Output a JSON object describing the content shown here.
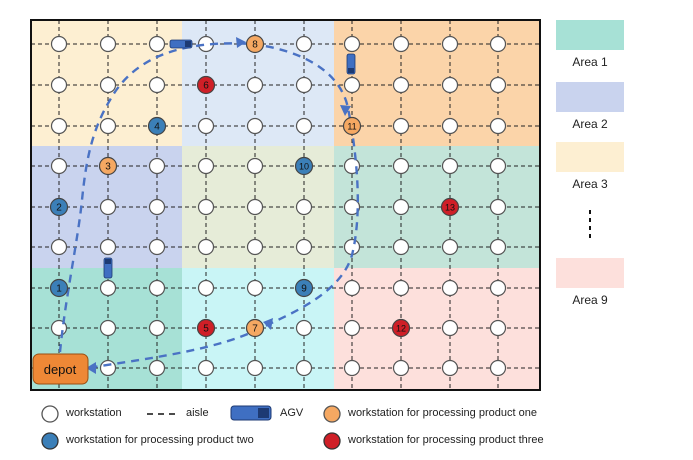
{
  "areas": [
    {
      "label": "Area 1",
      "color": "#a7e1d6"
    },
    {
      "label": "Area 2",
      "color": "#c9d3ee"
    },
    {
      "label": "Area 3",
      "color": "#fdefd2"
    },
    {
      "label": "Area 9",
      "color": "#fde0dc"
    }
  ],
  "depot": {
    "label": "depot",
    "color": "#ee8836"
  },
  "nodes": [
    {
      "number": "1",
      "product": "two"
    },
    {
      "number": "2",
      "product": "two"
    },
    {
      "number": "3",
      "product": "one"
    },
    {
      "number": "4",
      "product": "two"
    },
    {
      "number": "5",
      "product": "three"
    },
    {
      "number": "6",
      "product": "three"
    },
    {
      "number": "7",
      "product": "one"
    },
    {
      "number": "8",
      "product": "one"
    },
    {
      "number": "9",
      "product": "two"
    },
    {
      "number": "10",
      "product": "two"
    },
    {
      "number": "11",
      "product": "one"
    },
    {
      "number": "12",
      "product": "three"
    },
    {
      "number": "13",
      "product": "three"
    }
  ],
  "legend": {
    "workstation": "workstation",
    "aisle": "aisle",
    "agv": "AGV",
    "product_one": "workstation for processing product one",
    "product_two": "workstation for processing product two",
    "product_three": "workstation for processing product three"
  },
  "colors": {
    "product_one": "#f5a862",
    "product_two": "#3b7fb8",
    "product_three": "#cf1f27",
    "route": "#4a72c4",
    "agv": "#3f6fc2",
    "workstation": "#ffffff"
  }
}
